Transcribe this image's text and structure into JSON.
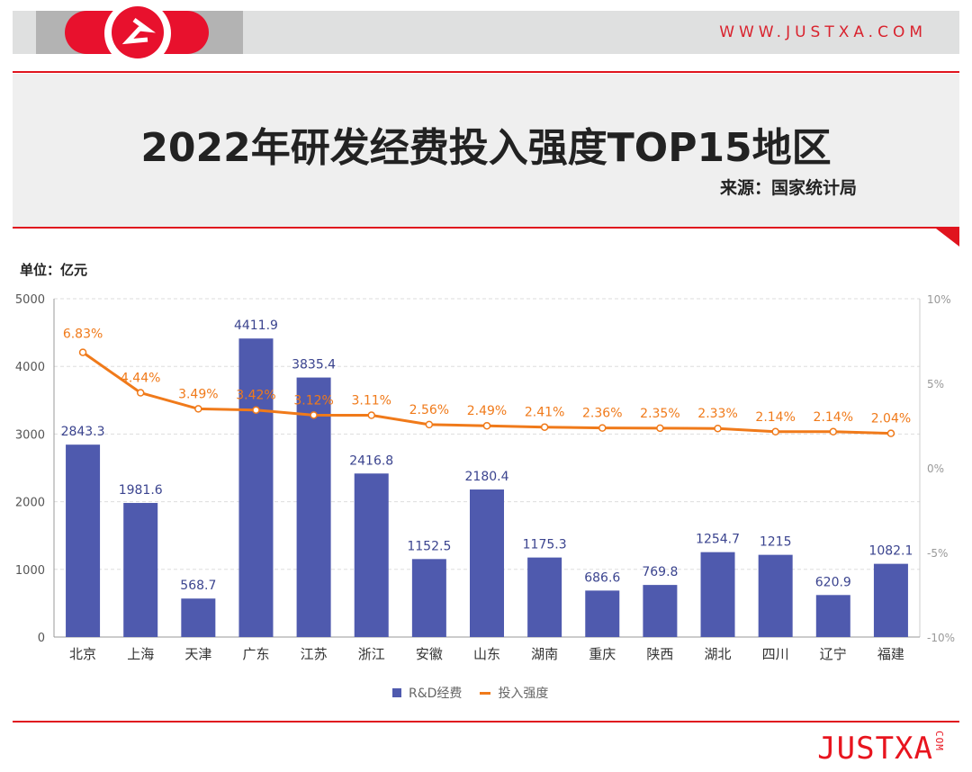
{
  "header": {
    "site": "WWW.JUSTXA.COM",
    "title": "2022年研发经费投入强度TOP15地区",
    "source": "来源：国家统计局",
    "unit": "单位：亿元",
    "brand": "JUSTXA",
    "brand_suffix": "COM"
  },
  "colors": {
    "bar": "#4f5aae",
    "line": "#f07a1a",
    "accent": "#e0141e"
  },
  "chart_data": {
    "type": "bar+line",
    "categories": [
      "北京",
      "上海",
      "天津",
      "广东",
      "江苏",
      "浙江",
      "安徽",
      "山东",
      "湖南",
      "重庆",
      "陕西",
      "湖北",
      "四川",
      "辽宁",
      "福建"
    ],
    "series": [
      {
        "name": "R&D经费",
        "type": "bar",
        "axis": "left",
        "values": [
          2843.3,
          1981.6,
          568.7,
          4411.9,
          3835.4,
          2416.8,
          1152.5,
          2180.4,
          1175.3,
          686.6,
          769.8,
          1254.7,
          1215,
          620.9,
          1082.1
        ],
        "labels": [
          "2843.3",
          "1981.6",
          "568.7",
          "4411.9",
          "3835.4",
          "2416.8",
          "1152.5",
          "2180.4",
          "1175.3",
          "686.6",
          "769.8",
          "1254.7",
          "1215",
          "620.9",
          "1082.1"
        ]
      },
      {
        "name": "投入强度",
        "type": "line",
        "axis": "right",
        "values": [
          6.83,
          4.44,
          3.49,
          3.42,
          3.12,
          3.11,
          2.56,
          2.49,
          2.41,
          2.36,
          2.35,
          2.33,
          2.14,
          2.14,
          2.04
        ],
        "labels": [
          "6.83%",
          "4.44%",
          "3.49%",
          "3.42%",
          "3.12%",
          "3.11%",
          "2.56%",
          "2.49%",
          "2.41%",
          "2.36%",
          "2.35%",
          "2.33%",
          "2.14%",
          "2.14%",
          "2.04%"
        ]
      }
    ],
    "yleft": {
      "range": [
        0,
        5000
      ],
      "ticks": [
        "0",
        "1000",
        "2000",
        "3000",
        "4000",
        "5000"
      ]
    },
    "yright": {
      "range": [
        -10,
        10
      ],
      "ticks": [
        "-10%",
        "-5%",
        "0%",
        "5%",
        "10%"
      ]
    },
    "grid": true,
    "legend": "bottom"
  }
}
